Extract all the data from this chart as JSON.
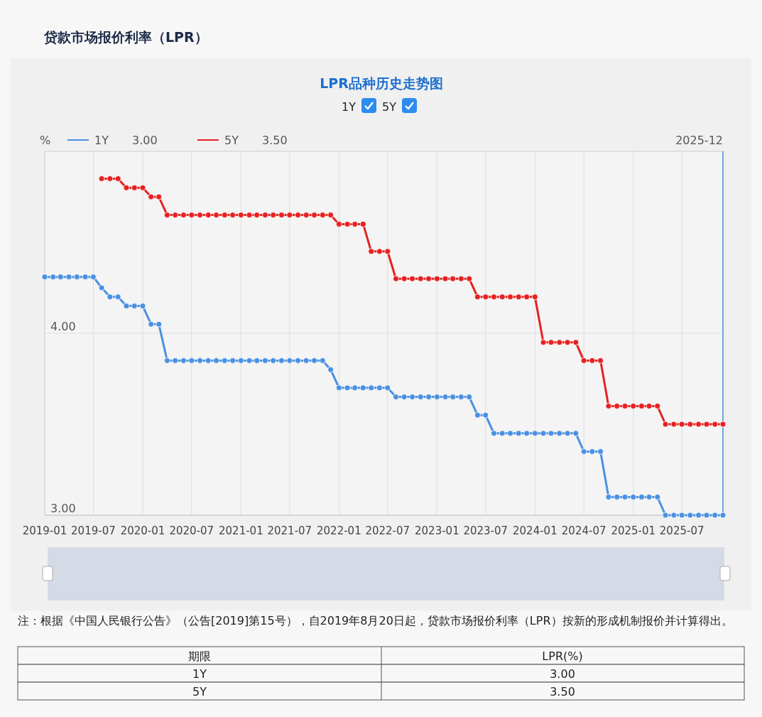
{
  "chart_data": {
    "type": "line",
    "title": "贷款市场报价利率（LPR）",
    "subtitle": "LPR品种历史走势图",
    "ylabel": "%",
    "x": [
      "2019-01",
      "2019-02",
      "2019-03",
      "2019-04",
      "2019-05",
      "2019-06",
      "2019-07",
      "2019-08",
      "2019-09",
      "2019-10",
      "2019-11",
      "2019-12",
      "2020-01",
      "2020-02",
      "2020-03",
      "2020-04",
      "2020-05",
      "2020-06",
      "2020-07",
      "2020-08",
      "2020-09",
      "2020-10",
      "2020-11",
      "2020-12",
      "2021-01",
      "2021-02",
      "2021-03",
      "2021-04",
      "2021-05",
      "2021-06",
      "2021-07",
      "2021-08",
      "2021-09",
      "2021-10",
      "2021-11",
      "2021-12",
      "2022-01",
      "2022-02",
      "2022-03",
      "2022-04",
      "2022-05",
      "2022-06",
      "2022-07",
      "2022-08",
      "2022-09",
      "2022-10",
      "2022-11",
      "2022-12",
      "2023-01",
      "2023-02",
      "2023-03",
      "2023-04",
      "2023-05",
      "2023-06",
      "2023-07",
      "2023-08",
      "2023-09",
      "2023-10",
      "2023-11",
      "2023-12",
      "2024-01",
      "2024-02",
      "2024-03",
      "2024-04",
      "2024-05",
      "2024-06",
      "2024-07",
      "2024-08",
      "2024-09",
      "2024-10",
      "2024-11",
      "2024-12",
      "2025-01",
      "2025-02",
      "2025-03",
      "2025-04",
      "2025-05",
      "2025-06",
      "2025-07",
      "2025-08",
      "2025-09",
      "2025-10",
      "2025-11",
      "2025-12"
    ],
    "series": [
      {
        "name": "1Y",
        "color": "#4a90e2",
        "values": [
          4.31,
          4.31,
          4.31,
          4.31,
          4.31,
          4.31,
          4.31,
          4.25,
          4.2,
          4.2,
          4.15,
          4.15,
          4.15,
          4.05,
          4.05,
          3.85,
          3.85,
          3.85,
          3.85,
          3.85,
          3.85,
          3.85,
          3.85,
          3.85,
          3.85,
          3.85,
          3.85,
          3.85,
          3.85,
          3.85,
          3.85,
          3.85,
          3.85,
          3.85,
          3.85,
          3.8,
          3.7,
          3.7,
          3.7,
          3.7,
          3.7,
          3.7,
          3.7,
          3.65,
          3.65,
          3.65,
          3.65,
          3.65,
          3.65,
          3.65,
          3.65,
          3.65,
          3.65,
          3.55,
          3.55,
          3.45,
          3.45,
          3.45,
          3.45,
          3.45,
          3.45,
          3.45,
          3.45,
          3.45,
          3.45,
          3.45,
          3.35,
          3.35,
          3.35,
          3.1,
          3.1,
          3.1,
          3.1,
          3.1,
          3.1,
          3.1,
          3.0,
          3.0,
          3.0,
          3.0,
          3.0,
          3.0,
          3.0,
          3.0
        ]
      },
      {
        "name": "5Y",
        "color": "#e62020",
        "values": [
          null,
          null,
          null,
          null,
          null,
          null,
          null,
          4.85,
          4.85,
          4.85,
          4.8,
          4.8,
          4.8,
          4.75,
          4.75,
          4.65,
          4.65,
          4.65,
          4.65,
          4.65,
          4.65,
          4.65,
          4.65,
          4.65,
          4.65,
          4.65,
          4.65,
          4.65,
          4.65,
          4.65,
          4.65,
          4.65,
          4.65,
          4.65,
          4.65,
          4.65,
          4.6,
          4.6,
          4.6,
          4.6,
          4.45,
          4.45,
          4.45,
          4.3,
          4.3,
          4.3,
          4.3,
          4.3,
          4.3,
          4.3,
          4.3,
          4.3,
          4.3,
          4.2,
          4.2,
          4.2,
          4.2,
          4.2,
          4.2,
          4.2,
          4.2,
          3.95,
          3.95,
          3.95,
          3.95,
          3.95,
          3.85,
          3.85,
          3.85,
          3.6,
          3.6,
          3.6,
          3.6,
          3.6,
          3.6,
          3.6,
          3.5,
          3.5,
          3.5,
          3.5,
          3.5,
          3.5,
          3.5,
          3.5
        ]
      }
    ],
    "xlim": [
      "2019-01",
      "2025-12"
    ],
    "xticks": [
      "2019-01",
      "2019-07",
      "2020-01",
      "2020-07",
      "2021-01",
      "2021-07",
      "2022-01",
      "2022-07",
      "2023-01",
      "2023-07",
      "2024-01",
      "2024-07",
      "2025-01",
      "2025-07"
    ],
    "ylim": [
      3,
      5
    ],
    "yticks": [
      {
        "value": 3,
        "label": "3.00"
      },
      {
        "value": 4,
        "label": "4.00"
      }
    ],
    "grid": true,
    "legend": "top left",
    "marker": "circle",
    "line_style": "solid",
    "ref_lines": [
      {
        "axis": "x",
        "value": "2025-12",
        "label": "2025-12",
        "color": "#4a90e2"
      }
    ],
    "annotations": [
      "注：根据《中国人民银行公告》（公告[2019]第15号），自2019年8月20日起，贷款市场报价利率（LPR）按新的形成机制报价并计算得出。",
      "期限",
      "LPR(%)",
      "1Y",
      "3.00",
      "5Y",
      "3.50",
      "3.00",
      "3.50"
    ]
  }
}
